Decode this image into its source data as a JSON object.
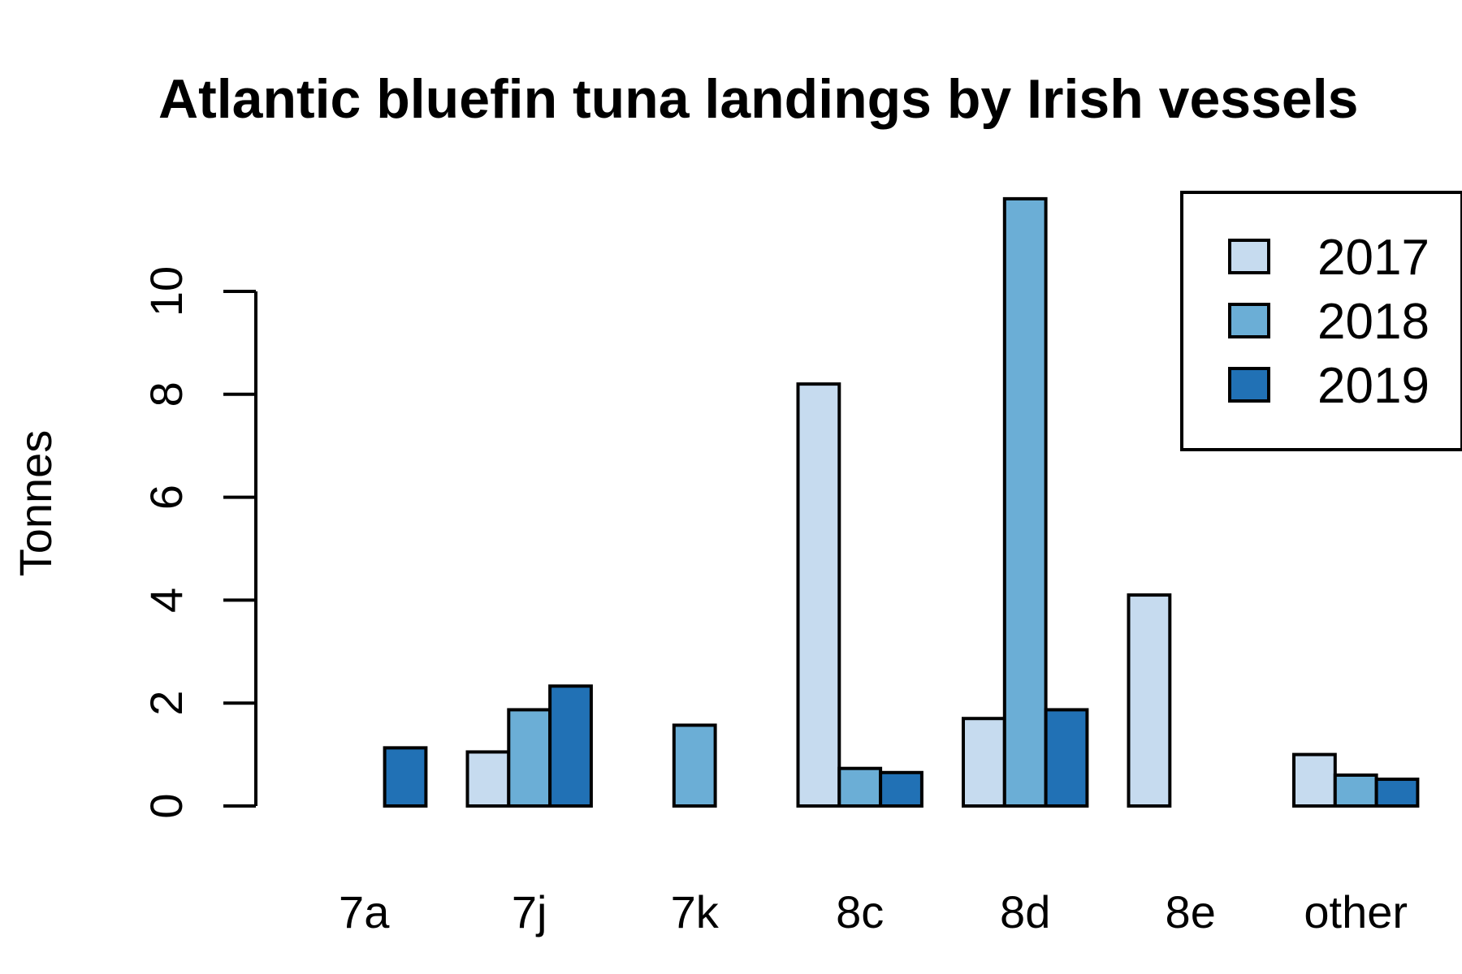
{
  "chart_data": {
    "type": "bar",
    "title": "Atlantic bluefin tuna landings by Irish vessels",
    "xlabel": "",
    "ylabel": "Tonnes",
    "categories": [
      "7a",
      "7j",
      "7k",
      "8c",
      "8d",
      "8e",
      "other"
    ],
    "series": [
      {
        "name": "2017",
        "color": "#c6dbef",
        "values": [
          0,
          1.05,
          0,
          8.2,
          1.7,
          4.1,
          1.0
        ]
      },
      {
        "name": "2018",
        "color": "#6baed6",
        "values": [
          0,
          1.87,
          1.57,
          0.73,
          11.8,
          0,
          0.6
        ]
      },
      {
        "name": "2019",
        "color": "#2171b5",
        "values": [
          1.13,
          2.33,
          0,
          0.65,
          1.87,
          0,
          0.52
        ]
      }
    ],
    "yticks": [
      0,
      2,
      4,
      6,
      8,
      10
    ],
    "ylim": [
      0,
      11.8
    ],
    "grid": false,
    "legend_position": "top-right"
  }
}
